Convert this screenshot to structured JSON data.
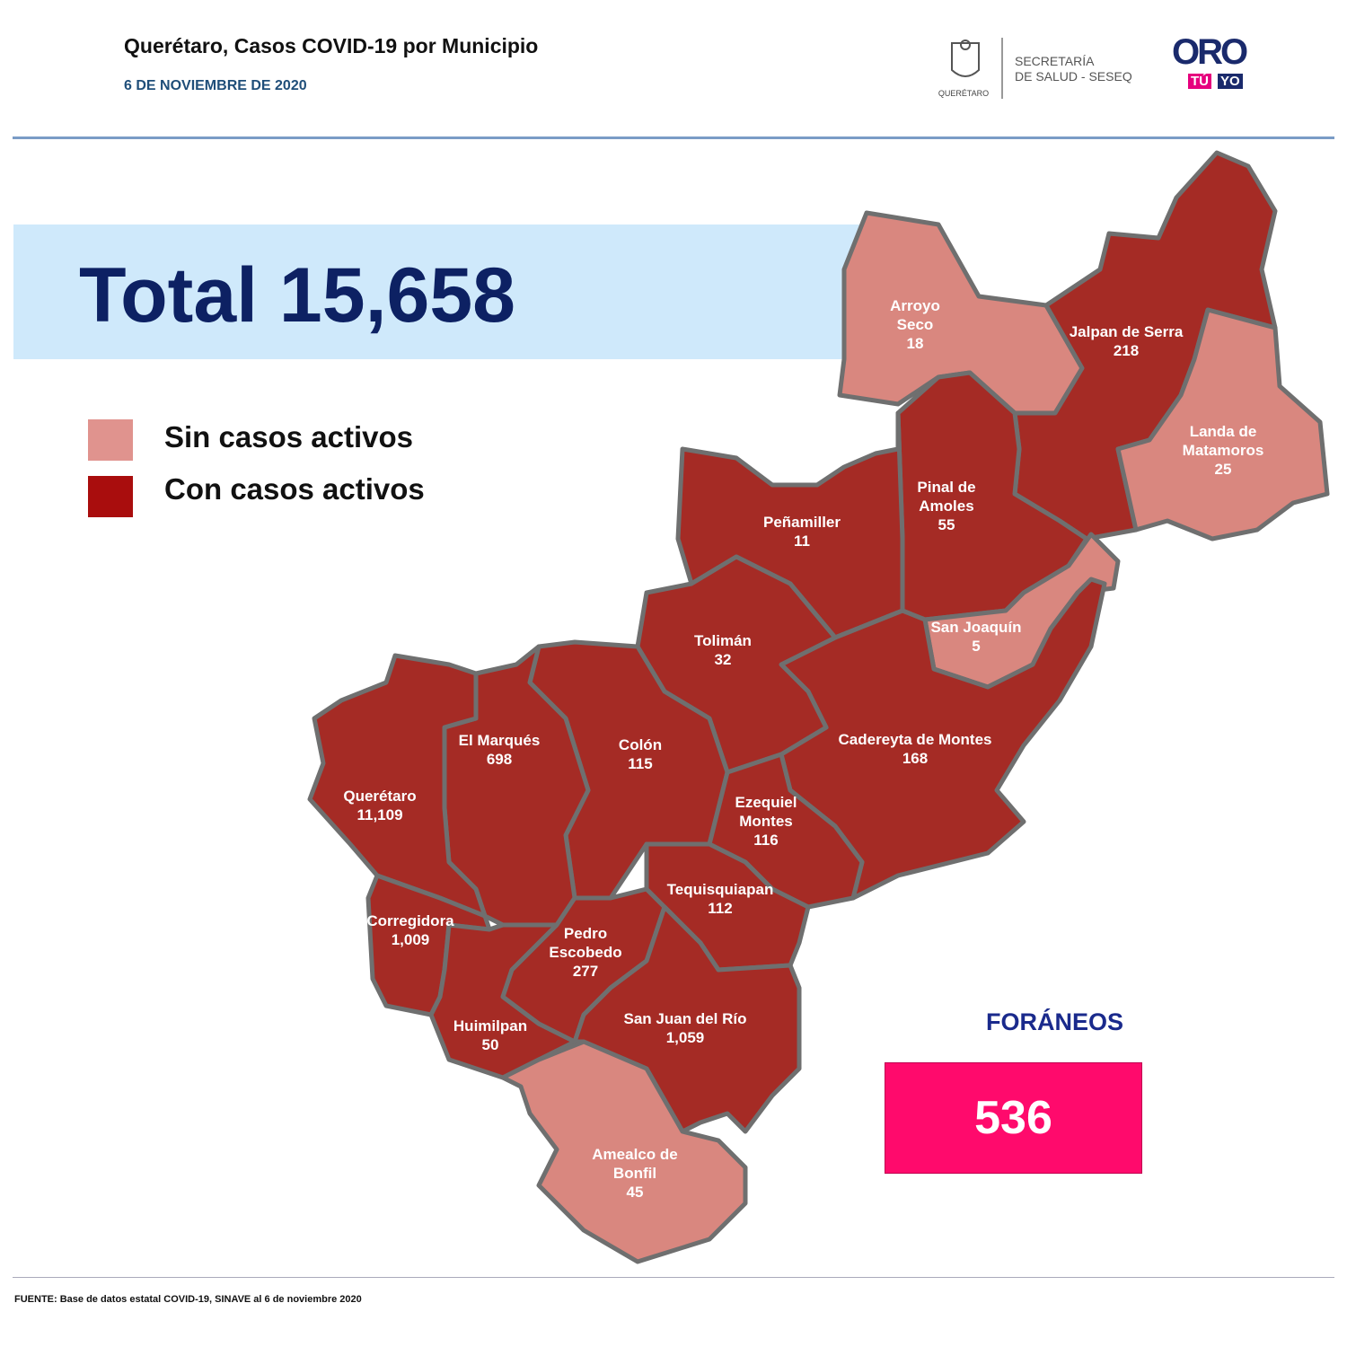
{
  "header": {
    "title": "Querétaro, Casos COVID-19 por Municipio",
    "date": "6 DE NOVIEMBRE DE 2020",
    "state_logo": "QUERÉTARO",
    "agency": [
      "SECRETARÍA",
      "DE SALUD - SESEQ"
    ],
    "brand": {
      "main": "ORO",
      "left": "TÚ",
      "right": "YO"
    }
  },
  "total": "Total 15,658",
  "legend": [
    {
      "label": "Sin casos activos",
      "color": "#e0938e"
    },
    {
      "label": "Con casos activos",
      "color": "#a90d0d"
    }
  ],
  "municipalities": [
    {
      "name": "Arroyo Seco",
      "cases": "18",
      "color": "#d9877f"
    },
    {
      "name": "Jalpan de Serra",
      "cases": "218",
      "color": "#a52b25"
    },
    {
      "name": "Landa de Matamoros",
      "cases": "25",
      "color": "#d9877f"
    },
    {
      "name": "Pinal de Amoles",
      "cases": "55",
      "color": "#a52b25"
    },
    {
      "name": "Peñamiller",
      "cases": "11",
      "color": "#a52b25"
    },
    {
      "name": "San Joaquín",
      "cases": "5",
      "color": "#d9877f"
    },
    {
      "name": "Cadereyta de Montes",
      "cases": "168",
      "color": "#a52b25"
    },
    {
      "name": "Tolimán",
      "cases": "32",
      "color": "#a52b25"
    },
    {
      "name": "Colón",
      "cases": "115",
      "color": "#a52b25"
    },
    {
      "name": "Ezequiel Montes",
      "cases": "116",
      "color": "#a52b25"
    },
    {
      "name": "El  Marqués",
      "cases": "698",
      "color": "#a52b25"
    },
    {
      "name": "Querétaro",
      "cases": "11,109",
      "color": "#a52b25"
    },
    {
      "name": "Corregidora",
      "cases": "1,009",
      "color": "#a52b25"
    },
    {
      "name": "Huimilpan",
      "cases": "50",
      "color": "#a52b25"
    },
    {
      "name": "Pedro Escobedo",
      "cases": "277",
      "color": "#a52b25"
    },
    {
      "name": "Tequisquiapan",
      "cases": "112",
      "color": "#a52b25"
    },
    {
      "name": "San Juan del Río",
      "cases": "1,059",
      "color": "#a52b25"
    },
    {
      "name": "Amealco de Bonfil",
      "cases": "45",
      "color": "#d9877f"
    }
  ],
  "foraneos": {
    "label": "FORÁNEOS",
    "value": "536"
  },
  "footer": "FUENTE: Base de datos estatal COVID-19, SINAVE  al 6 de noviembre  2020"
}
